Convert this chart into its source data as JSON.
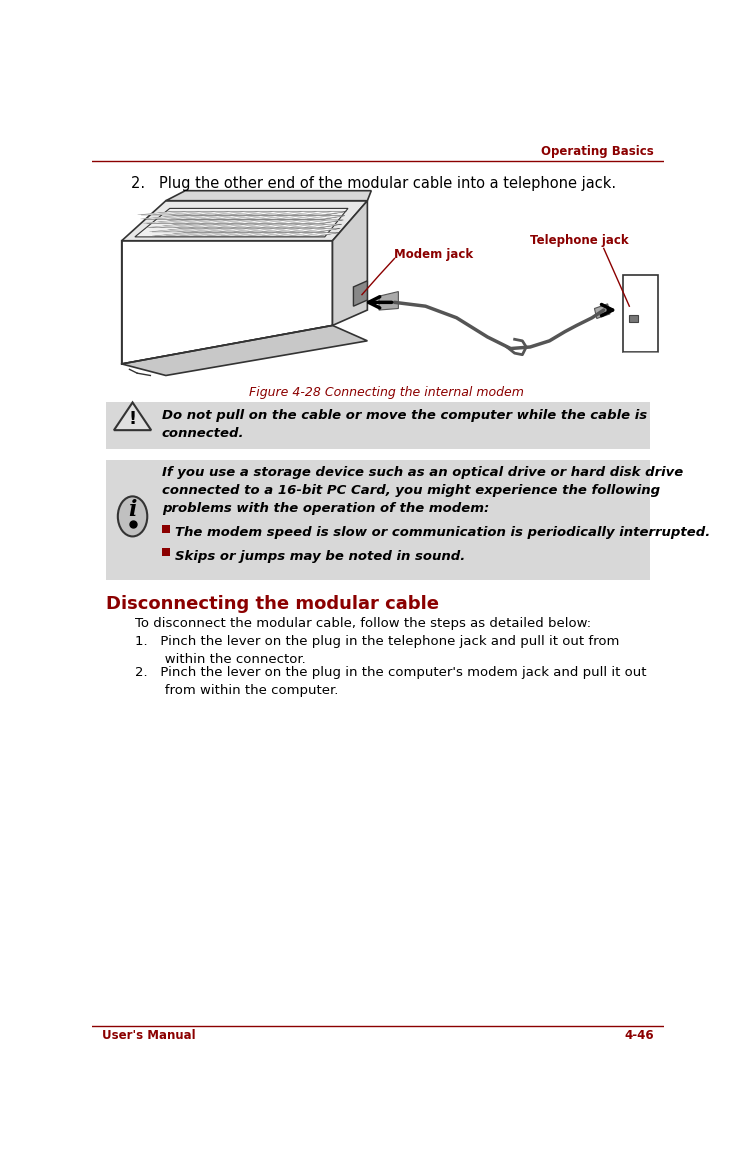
{
  "page_width": 7.38,
  "page_height": 11.72,
  "dpi": 100,
  "bg_color": "#ffffff",
  "header_text": "Operating Basics",
  "header_color": "#8B0000",
  "header_line_color": "#8B0000",
  "footer_left": "User's Manual",
  "footer_right": "4-46",
  "footer_color": "#8B0000",
  "footer_line_color": "#8B0000",
  "step2_text": "2.   Plug the other end of the modular cable into a telephone jack.",
  "figure_caption": "Figure 4-28 Connecting the internal modem",
  "figure_caption_color": "#8B0000",
  "warning_text": "Do not pull on the cable or move the computer while the cable is\nconnected.",
  "info_text_para": "If you use a storage device such as an optical drive or hard disk drive\nconnected to a 16-bit PC Card, you might experience the following\nproblems with the operation of the modem:",
  "info_bullet1": "The modem speed is slow or communication is periodically interrupted.",
  "info_bullet2": "Skips or jumps may be noted in sound.",
  "section_title": "Disconnecting the modular cable",
  "section_title_color": "#8B0000",
  "section_intro": "To disconnect the modular cable, follow the steps as detailed below:",
  "step1_disc": "1.   Pinch the lever on the plug in the telephone jack and pull it out from\n       within the connector.",
  "step2_disc": "2.   Pinch the lever on the plug in the computer's modem jack and pull it out\n       from within the computer.",
  "modem_jack_label": "Modem jack",
  "telephone_jack_label": "Telephone jack",
  "label_color": "#8B0000",
  "note_bg": "#d8d8d8",
  "bullet_color": "#8B0000",
  "line_color": "#000000",
  "draw_color": "#333333"
}
